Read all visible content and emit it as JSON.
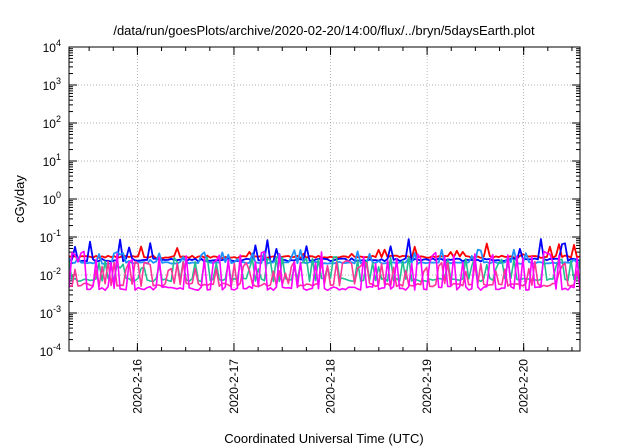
{
  "chart_data": {
    "type": "line",
    "title": "/data/run/goesPlots/archive/2020-02-20/14:00/flux/../bryn/5daysEarth.plot",
    "xlabel": "Coordinated Universal Time (UTC)",
    "ylabel": "cGy/day",
    "y_scale": "log",
    "ylim": [
      0.0001,
      10000
    ],
    "y_ticks": [
      {
        "base": "10",
        "exp": "-4"
      },
      {
        "base": "10",
        "exp": "-3"
      },
      {
        "base": "10",
        "exp": "-2"
      },
      {
        "base": "10",
        "exp": "-1"
      },
      {
        "base": "10",
        "exp": "0"
      },
      {
        "base": "10",
        "exp": "1"
      },
      {
        "base": "10",
        "exp": "2"
      },
      {
        "base": "10",
        "exp": "3"
      },
      {
        "base": "10",
        "exp": "4"
      }
    ],
    "x_range_days": [
      "2020-02-15 07:00",
      "2020-02-20 14:00"
    ],
    "x_ticks": [
      "2020-2-16",
      "2020-2-17",
      "2020-2-18",
      "2020-2-19",
      "2020-2-20"
    ],
    "grid": true,
    "legend": "none",
    "series": [
      {
        "color": "#ff0000",
        "base": 0.03,
        "spike_base": 0.045,
        "spike_prob": 0.1,
        "noise": 0.08
      },
      {
        "color": "#0000ff",
        "base": 0.025,
        "spike_base": 0.06,
        "spike_prob": 0.08,
        "noise": 0.1
      },
      {
        "color": "#1e90ff",
        "base": 0.021,
        "spike_base": 0.032,
        "spike_prob": 0.2,
        "noise": 0.06
      },
      {
        "color": "#20c090",
        "base": 0.0075,
        "spike_base": 0.02,
        "spike_prob": 0.3,
        "noise": 0.1
      },
      {
        "color": "#ff3399",
        "base": 0.0055,
        "spike_base": 0.016,
        "spike_prob": 0.32,
        "noise": 0.1
      },
      {
        "color": "#ff00ff",
        "base": 0.0045,
        "spike_base": 0.028,
        "spike_prob": 0.35,
        "noise": 0.12
      }
    ]
  }
}
